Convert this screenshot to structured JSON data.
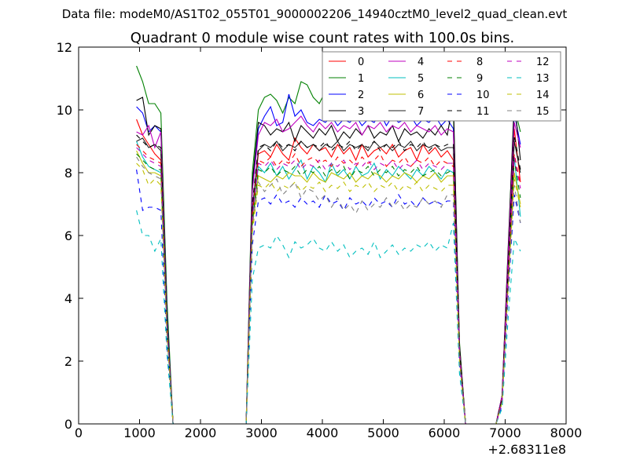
{
  "chart_data": {
    "type": "line",
    "suptitle": "Data file: modeM0/AS1T02_055T01_9000002206_14940cztM0_level2_quad_clean.evt",
    "title": "Quadrant 0 module wise count rates with 100.0s bins.",
    "xlabel": "",
    "ylabel": "",
    "x_offset_label": "+2.68311e8",
    "xlim": [
      0,
      8000
    ],
    "ylim": [
      0,
      12
    ],
    "xticks": [
      0,
      1000,
      2000,
      3000,
      4000,
      5000,
      6000,
      7000,
      8000
    ],
    "yticks": [
      0,
      2,
      4,
      6,
      8,
      10,
      12
    ],
    "x": [
      950,
      1050,
      1150,
      1250,
      1350,
      1450,
      1550,
      1650,
      1750,
      1850,
      1950,
      2050,
      2150,
      2250,
      2350,
      2450,
      2550,
      2650,
      2750,
      2850,
      2950,
      3050,
      3150,
      3250,
      3350,
      3450,
      3550,
      3650,
      3750,
      3850,
      3950,
      4050,
      4150,
      4250,
      4350,
      4450,
      4550,
      4650,
      4750,
      4850,
      4950,
      5050,
      5150,
      5250,
      5350,
      5450,
      5550,
      5650,
      5750,
      5850,
      5950,
      6050,
      6150,
      6250,
      6350,
      6450,
      6550,
      6650,
      6750,
      6850,
      6950,
      7050,
      7150,
      7250
    ],
    "legend": {
      "position": "top-right",
      "columns": 4
    },
    "series": [
      {
        "name": "0",
        "color": "#ff0000",
        "dashed": false,
        "values": [
          9.7,
          9.2,
          8.9,
          8.6,
          8.4,
          3.2,
          0,
          0,
          0,
          0,
          0,
          0,
          0,
          0,
          0,
          0,
          0,
          0,
          0,
          6.8,
          8.6,
          8.7,
          8.5,
          8.9,
          8.6,
          8.4,
          9.1,
          8.8,
          8.6,
          8.9,
          8.7,
          8.8,
          8.5,
          8.9,
          8.6,
          8.8,
          8.4,
          8.9,
          8.5,
          8.7,
          8.8,
          8.6,
          8.9,
          8.5,
          8.7,
          8.8,
          8.4,
          8.9,
          8.6,
          8.8,
          8.5,
          8.7,
          8.4,
          2.5,
          0,
          0,
          0,
          0,
          0,
          0,
          0.8,
          4.9,
          9.4,
          7.7
        ]
      },
      {
        "name": "1",
        "color": "#008000",
        "dashed": false,
        "values": [
          11.4,
          10.9,
          10.2,
          10.2,
          9.9,
          3.9,
          0,
          0,
          0,
          0,
          0,
          0,
          0,
          0,
          0,
          0,
          0,
          0,
          0,
          8.0,
          10.0,
          10.4,
          10.5,
          10.3,
          9.9,
          10.4,
          10.2,
          10.9,
          10.8,
          10.4,
          10.2,
          10.6,
          10.3,
          10.5,
          10.2,
          10.6,
          10.4,
          10.6,
          10.2,
          10.5,
          10.3,
          10.6,
          10.4,
          10.7,
          10.3,
          10.5,
          10.2,
          10.6,
          10.4,
          10.5,
          10.2,
          10.4,
          10.0,
          2.6,
          0,
          0,
          0,
          0,
          0,
          0,
          0.9,
          5.7,
          10.1,
          9.3
        ]
      },
      {
        "name": "2",
        "color": "#0000ff",
        "dashed": false,
        "values": [
          10.1,
          9.9,
          9.3,
          9.5,
          9.3,
          3.5,
          0,
          0,
          0,
          0,
          0,
          0,
          0,
          0,
          0,
          0,
          0,
          0,
          0,
          7.5,
          9.4,
          9.8,
          10.1,
          9.5,
          9.6,
          10.5,
          9.8,
          10.0,
          9.6,
          9.5,
          9.7,
          9.6,
          9.8,
          9.5,
          9.7,
          9.6,
          9.8,
          9.5,
          9.7,
          9.6,
          9.9,
          9.5,
          9.8,
          9.6,
          9.7,
          9.8,
          9.5,
          9.7,
          9.6,
          9.8,
          9.5,
          9.7,
          9.4,
          2.4,
          0,
          0,
          0,
          0,
          0,
          0,
          0.9,
          5.4,
          9.9,
          8.9
        ]
      },
      {
        "name": "3",
        "color": "#000000",
        "dashed": false,
        "values": [
          10.3,
          10.4,
          9.2,
          9.5,
          9.4,
          3.4,
          0,
          0,
          0,
          0,
          0,
          0,
          0,
          0,
          0,
          0,
          0,
          0,
          0,
          7.7,
          9.6,
          9.5,
          9.2,
          9.4,
          9.3,
          9.6,
          9.0,
          9.5,
          9.3,
          9.1,
          9.4,
          9.2,
          9.5,
          9.0,
          9.3,
          9.1,
          9.4,
          9.2,
          9.5,
          9.1,
          9.3,
          9.2,
          9.5,
          9.0,
          9.4,
          9.2,
          9.3,
          9.1,
          9.4,
          9.2,
          9.5,
          9.2,
          10.3,
          2.5,
          0,
          0,
          0,
          0,
          0,
          0,
          0.9,
          5.6,
          10.3,
          8.4
        ]
      },
      {
        "name": "4",
        "color": "#bf00bf",
        "dashed": false,
        "values": [
          9.3,
          9.2,
          9.5,
          8.8,
          9.3,
          3.3,
          0,
          0,
          0,
          0,
          0,
          0,
          0,
          0,
          0,
          0,
          0,
          0,
          0,
          7.4,
          9.2,
          9.6,
          9.5,
          9.7,
          9.3,
          9.4,
          9.6,
          9.8,
          9.5,
          9.3,
          9.6,
          9.4,
          9.6,
          9.3,
          9.5,
          9.4,
          9.6,
          9.2,
          9.5,
          9.4,
          9.6,
          9.3,
          9.5,
          9.4,
          9.6,
          9.3,
          9.5,
          9.4,
          9.3,
          9.5,
          9.2,
          9.4,
          9.3,
          2.4,
          0,
          0,
          0,
          0,
          0,
          0,
          0.9,
          5.5,
          9.6,
          8.8
        ]
      },
      {
        "name": "5",
        "color": "#00bfbf",
        "dashed": false,
        "values": [
          9.0,
          8.5,
          8.2,
          8.1,
          8.0,
          3.0,
          0,
          0,
          0,
          0,
          0,
          0,
          0,
          0,
          0,
          0,
          0,
          0,
          0,
          6.5,
          8.2,
          8.0,
          8.3,
          7.9,
          8.2,
          7.8,
          8.1,
          8.4,
          7.8,
          8.2,
          8.0,
          7.7,
          8.3,
          7.9,
          8.1,
          7.8,
          8.2,
          7.9,
          8.0,
          8.3,
          7.8,
          8.1,
          7.9,
          8.2,
          8.0,
          7.8,
          8.1,
          7.9,
          8.2,
          8.0,
          7.8,
          8.1,
          8.0,
          2.2,
          0,
          0,
          0,
          0,
          0,
          0,
          0.7,
          4.6,
          8.5,
          6.6
        ]
      },
      {
        "name": "6",
        "color": "#bfbf00",
        "dashed": false,
        "values": [
          8.7,
          8.3,
          8.0,
          8.0,
          7.9,
          2.9,
          0,
          0,
          0,
          0,
          0,
          0,
          0,
          0,
          0,
          0,
          0,
          0,
          0,
          6.3,
          7.9,
          7.8,
          7.7,
          7.9,
          7.8,
          8.0,
          7.9,
          7.9,
          7.7,
          8.0,
          7.8,
          7.7,
          8.0,
          7.9,
          7.8,
          8.0,
          7.7,
          7.9,
          7.8,
          8.0,
          7.9,
          7.7,
          7.9,
          7.8,
          8.0,
          7.9,
          7.7,
          7.9,
          7.8,
          8.0,
          7.7,
          7.9,
          7.9,
          2.1,
          0,
          0,
          0,
          0,
          0,
          0,
          0.7,
          4.5,
          8.0,
          7.0
        ]
      },
      {
        "name": "7",
        "color": "#222222",
        "dashed": false,
        "values": [
          9.0,
          9.1,
          8.8,
          8.9,
          8.7,
          3.2,
          0,
          0,
          0,
          0,
          0,
          0,
          0,
          0,
          0,
          0,
          0,
          0,
          0,
          6.8,
          8.7,
          8.9,
          8.8,
          9.0,
          8.7,
          8.9,
          8.8,
          9.0,
          8.8,
          8.9,
          8.7,
          8.9,
          8.8,
          9.0,
          8.7,
          8.9,
          8.8,
          8.9,
          8.7,
          9.0,
          8.8,
          8.9,
          8.7,
          8.9,
          8.8,
          9.0,
          8.7,
          8.9,
          8.8,
          8.9,
          8.7,
          8.8,
          8.8,
          2.3,
          0,
          0,
          0,
          0,
          0,
          0,
          0.8,
          5.0,
          9.0,
          8.0
        ]
      },
      {
        "name": "8",
        "color": "#ff0000",
        "dashed": true,
        "values": [
          8.9,
          8.7,
          8.5,
          8.4,
          8.3,
          3.1,
          0,
          0,
          0,
          0,
          0,
          0,
          0,
          0,
          0,
          0,
          0,
          0,
          0,
          6.6,
          8.4,
          8.3,
          8.5,
          8.2,
          8.4,
          8.3,
          8.6,
          8.2,
          8.4,
          8.5,
          8.3,
          8.4,
          8.2,
          8.5,
          8.3,
          8.4,
          8.2,
          8.5,
          8.3,
          8.4,
          8.6,
          8.2,
          8.4,
          8.3,
          8.5,
          8.2,
          8.4,
          8.3,
          8.5,
          8.2,
          8.4,
          8.3,
          8.2,
          2.2,
          0,
          0,
          0,
          0,
          0,
          0,
          0.8,
          4.8,
          8.6,
          7.6
        ]
      },
      {
        "name": "9",
        "color": "#008000",
        "dashed": true,
        "values": [
          8.6,
          8.4,
          8.2,
          8.1,
          8.1,
          3.0,
          0,
          0,
          0,
          0,
          0,
          0,
          0,
          0,
          0,
          0,
          0,
          0,
          0,
          6.4,
          8.1,
          8.0,
          8.2,
          7.9,
          8.1,
          8.0,
          8.2,
          7.9,
          8.1,
          8.0,
          8.2,
          7.9,
          8.1,
          8.0,
          8.2,
          7.8,
          8.1,
          8.0,
          8.2,
          7.9,
          8.1,
          8.0,
          8.2,
          7.9,
          8.1,
          8.0,
          8.2,
          7.9,
          8.0,
          8.1,
          7.9,
          8.0,
          8.1,
          2.2,
          0,
          0,
          0,
          0,
          0,
          0,
          0.7,
          4.7,
          8.4,
          7.2
        ]
      },
      {
        "name": "10",
        "color": "#0000ff",
        "dashed": true,
        "values": [
          8.1,
          6.8,
          6.9,
          6.9,
          6.8,
          2.5,
          0,
          0,
          0,
          0,
          0,
          0,
          0,
          0,
          0,
          0,
          0,
          0,
          0,
          5.7,
          7.1,
          7.2,
          7.0,
          7.3,
          7.0,
          7.1,
          6.9,
          7.2,
          7.0,
          7.1,
          6.9,
          7.3,
          7.0,
          7.1,
          6.8,
          7.2,
          7.0,
          7.1,
          6.9,
          7.2,
          7.0,
          7.1,
          6.9,
          7.3,
          7.0,
          7.1,
          6.9,
          7.2,
          7.0,
          7.1,
          7.0,
          7.1,
          7.1,
          1.9,
          0,
          0,
          0,
          0,
          0,
          0,
          0.6,
          4.1,
          7.3,
          6.4
        ]
      },
      {
        "name": "11",
        "color": "#000000",
        "dashed": true,
        "values": [
          9.2,
          9.0,
          8.8,
          8.9,
          8.8,
          3.3,
          0,
          0,
          0,
          0,
          0,
          0,
          0,
          0,
          0,
          0,
          0,
          0,
          0,
          7.0,
          8.8,
          8.9,
          8.7,
          9.0,
          8.8,
          8.9,
          8.7,
          9.0,
          8.8,
          8.9,
          8.8,
          9.0,
          8.7,
          8.9,
          8.8,
          9.0,
          8.7,
          8.9,
          8.8,
          9.0,
          8.7,
          8.9,
          8.8,
          9.0,
          8.7,
          8.9,
          8.8,
          9.0,
          8.7,
          8.9,
          8.8,
          8.9,
          8.9,
          2.4,
          0,
          0,
          0,
          0,
          0,
          0,
          0.8,
          5.1,
          9.2,
          8.1
        ]
      },
      {
        "name": "12",
        "color": "#bf00bf",
        "dashed": true,
        "values": [
          8.8,
          8.6,
          8.4,
          8.3,
          8.2,
          3.1,
          0,
          0,
          0,
          0,
          0,
          0,
          0,
          0,
          0,
          0,
          0,
          0,
          0,
          6.6,
          8.3,
          8.2,
          8.4,
          8.1,
          8.3,
          8.2,
          8.4,
          8.1,
          8.3,
          8.2,
          8.4,
          8.1,
          8.3,
          8.2,
          8.4,
          8.1,
          8.3,
          8.2,
          8.4,
          8.1,
          8.3,
          8.2,
          8.4,
          8.1,
          8.3,
          8.2,
          8.4,
          8.1,
          8.3,
          8.2,
          8.1,
          8.3,
          8.3,
          2.2,
          0,
          0,
          0,
          0,
          0,
          0,
          0.7,
          4.8,
          8.5,
          7.5
        ]
      },
      {
        "name": "13",
        "color": "#00bfbf",
        "dashed": true,
        "values": [
          6.8,
          6.0,
          6.0,
          5.5,
          5.9,
          2.2,
          0,
          0,
          0,
          0,
          0,
          0,
          0,
          0,
          0,
          0,
          0,
          0,
          0,
          4.6,
          5.6,
          5.7,
          5.6,
          6.0,
          5.7,
          5.3,
          5.8,
          5.6,
          5.7,
          5.9,
          5.6,
          5.5,
          5.8,
          5.5,
          5.7,
          5.3,
          5.5,
          5.6,
          5.4,
          5.8,
          5.3,
          5.5,
          5.7,
          5.4,
          5.6,
          5.5,
          5.7,
          5.6,
          5.8,
          5.5,
          5.7,
          5.6,
          6.4,
          1.6,
          0,
          0,
          0,
          0,
          0,
          0,
          0.5,
          3.4,
          5.9,
          5.5
        ]
      },
      {
        "name": "14",
        "color": "#bfbf00",
        "dashed": true,
        "values": [
          8.3,
          8.1,
          7.6,
          7.8,
          7.6,
          2.8,
          0,
          0,
          0,
          0,
          0,
          0,
          0,
          0,
          0,
          0,
          0,
          0,
          0,
          6.1,
          7.6,
          7.5,
          7.7,
          7.4,
          7.6,
          7.5,
          7.7,
          7.4,
          7.6,
          7.5,
          7.7,
          7.4,
          7.6,
          7.5,
          7.7,
          7.4,
          7.6,
          7.5,
          7.7,
          7.4,
          7.6,
          7.5,
          7.7,
          7.4,
          7.6,
          7.5,
          7.7,
          7.4,
          7.6,
          7.5,
          7.4,
          7.6,
          7.6,
          2.0,
          0,
          0,
          0,
          0,
          0,
          0,
          0.7,
          4.4,
          7.8,
          6.9
        ]
      },
      {
        "name": "15",
        "color": "#808080",
        "dashed": true,
        "values": [
          8.5,
          8.2,
          8.0,
          7.9,
          7.8,
          2.9,
          0,
          0,
          0,
          0,
          0,
          0,
          0,
          0,
          0,
          0,
          0,
          0,
          0,
          6.3,
          7.7,
          7.4,
          7.6,
          7.8,
          7.3,
          7.5,
          7.7,
          7.2,
          7.5,
          7.4,
          7.1,
          7.3,
          6.9,
          7.2,
          6.8,
          7.0,
          6.7,
          7.1,
          6.8,
          7.0,
          6.9,
          7.2,
          6.9,
          7.1,
          6.8,
          7.0,
          6.9,
          7.2,
          7.0,
          7.1,
          6.9,
          7.3,
          7.3,
          2.0,
          0,
          0,
          0,
          0,
          0,
          0,
          0.7,
          4.3,
          7.6,
          6.4
        ]
      }
    ]
  }
}
